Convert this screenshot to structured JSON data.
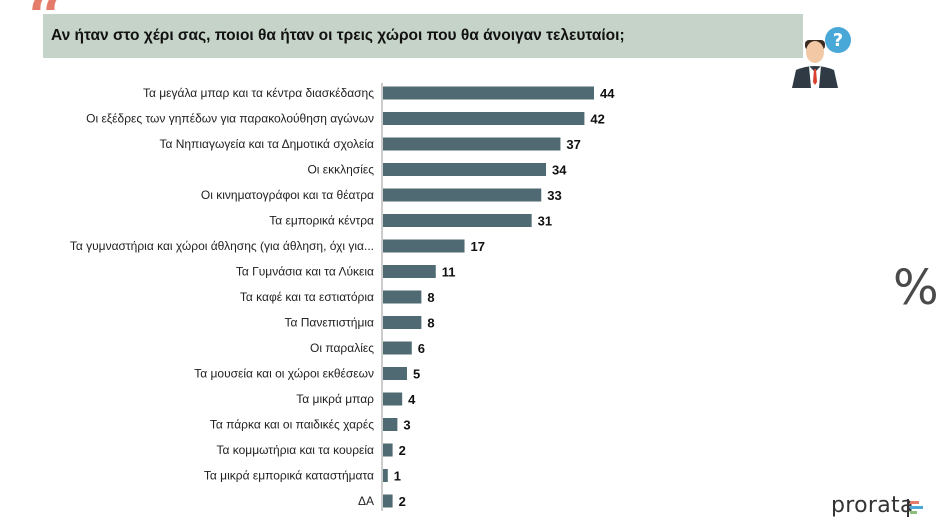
{
  "header": {
    "quote_glyph": "“",
    "question": "Αν ήταν στο χέρι σας, ποιοι θα ήταν οι τρεις χώροι που θα άνοιγαν τελευταίοι;"
  },
  "unit_symbol": "%",
  "logo": {
    "text": "prorata"
  },
  "colors": {
    "bar": "#4f6a72",
    "banner": "#c5d3c8",
    "quote": "#e57b6b",
    "accent_blue": "#4aa8d8"
  },
  "icons": {
    "person": "businessman-question-icon"
  },
  "chart_data": {
    "type": "bar",
    "orientation": "horizontal",
    "categories": [
      "Τα μεγάλα μπαρ και τα κέντρα διασκέδασης",
      "Οι εξέδρες των γηπέδων για παρακολούθηση αγώνων",
      "Τα Νηπιαγωγεία και τα Δημοτικά σχολεία",
      "Οι εκκλησίες",
      "Οι κινηματογράφοι και τα θέατρα",
      "Τα εμπορικά κέντρα",
      "Τα γυμναστήρια και χώροι άθλησης (για άθληση, όχι για...",
      "Τα Γυμνάσια και τα Λύκεια",
      "Τα καφέ και τα εστιατόρια",
      "Τα Πανεπιστήμια",
      "Οι παραλίες",
      "Τα μουσεία και οι χώροι εκθέσεων",
      "Τα μικρά μπαρ",
      "Τα πάρκα και οι παιδικές χαρές",
      "Τα κομμωτήρια και τα κουρεία",
      "Τα μικρά εμπορικά καταστήματα",
      "ΔΑ"
    ],
    "values": [
      44,
      42,
      37,
      34,
      33,
      31,
      17,
      11,
      8,
      8,
      6,
      5,
      4,
      3,
      2,
      1,
      2
    ],
    "xlim": [
      0,
      44
    ],
    "grid": false,
    "legend": "none"
  }
}
